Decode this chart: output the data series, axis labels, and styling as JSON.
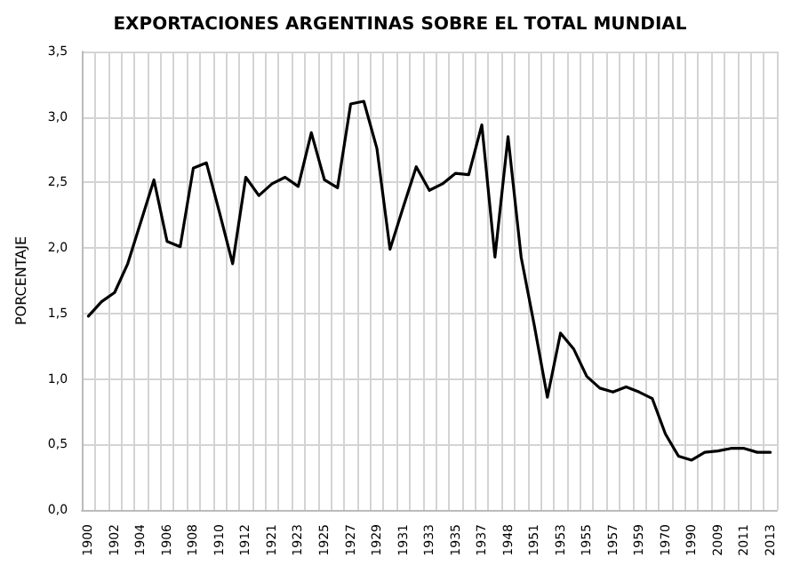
{
  "chart_data": {
    "type": "line",
    "title": "EXPORTACIONES ARGENTINAS SOBRE EL TOTAL MUNDIAL",
    "ylabel": "PORCENTAJE",
    "categories": [
      "1900",
      null,
      "1902",
      null,
      "1904",
      null,
      "1906",
      null,
      "1908",
      null,
      "1910",
      null,
      "1912",
      null,
      "1921",
      null,
      "1923",
      null,
      "1925",
      null,
      "1927",
      null,
      "1929",
      null,
      "1931",
      null,
      "1933",
      null,
      "1935",
      null,
      "1937",
      null,
      "1948",
      null,
      "1951",
      null,
      "1953",
      null,
      "1955",
      null,
      "1957",
      null,
      "1959",
      null,
      "1970",
      null,
      "1990",
      null,
      "2009",
      null,
      "2011",
      null,
      "2013"
    ],
    "series": [
      {
        "color": "#000000",
        "values": [
          1.48,
          1.59,
          1.66,
          1.88,
          2.2,
          2.52,
          2.05,
          2.01,
          2.61,
          2.65,
          2.27,
          1.88,
          2.54,
          2.4,
          2.49,
          2.54,
          2.47,
          2.88,
          2.52,
          2.46,
          3.1,
          3.12,
          2.76,
          1.99,
          2.31,
          2.62,
          2.44,
          2.49,
          2.57,
          2.56,
          2.94,
          1.93,
          2.85,
          1.93,
          1.41,
          0.86,
          1.35,
          1.23,
          1.02,
          0.93,
          0.9,
          0.94,
          0.9,
          0.85,
          0.58,
          0.41,
          0.38,
          0.44,
          0.45,
          0.47,
          0.47,
          0.44,
          0.44
        ]
      }
    ],
    "ylim": [
      0,
      3.5
    ],
    "yticks": [
      {
        "value": 0,
        "label": "0,0"
      },
      {
        "value": 0.5,
        "label": "0,5"
      },
      {
        "value": 1,
        "label": "1,0"
      },
      {
        "value": 1.5,
        "label": "1,5"
      },
      {
        "value": 2,
        "label": "2,0"
      },
      {
        "value": 2.5,
        "label": "2,5"
      },
      {
        "value": 3,
        "label": "3,0"
      },
      {
        "value": 3.5,
        "label": "3,5"
      }
    ],
    "grid": true,
    "marker": "none",
    "line_style": "solid"
  }
}
